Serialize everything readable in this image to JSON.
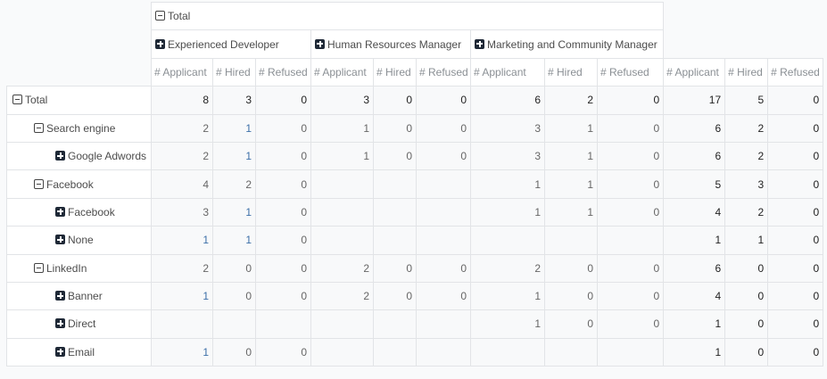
{
  "columns": {
    "root": {
      "label": "Total",
      "expanded": true
    },
    "groups": [
      {
        "label": "Experienced Developer",
        "expanded": false
      },
      {
        "label": "Human Resources Manager",
        "expanded": false
      },
      {
        "label": "Marketing and Community Manager",
        "expanded": false
      }
    ],
    "measures": [
      "# Applicant",
      "# Hired",
      "# Refused"
    ]
  },
  "rows": [
    {
      "label": "Total",
      "level": 0,
      "icon": "minus",
      "values": [
        "8",
        "3",
        "0",
        "3",
        "0",
        "0",
        "6",
        "2",
        "0",
        "17",
        "5",
        "0"
      ]
    },
    {
      "label": "Search engine",
      "level": 1,
      "icon": "minus",
      "values": [
        "2",
        "1",
        "0",
        "1",
        "0",
        "0",
        "3",
        "1",
        "0",
        "6",
        "2",
        "0"
      ]
    },
    {
      "label": "Google Adwords",
      "level": 2,
      "icon": "plus",
      "values": [
        "2",
        "1",
        "0",
        "1",
        "0",
        "0",
        "3",
        "1",
        "0",
        "6",
        "2",
        "0"
      ]
    },
    {
      "label": "Facebook",
      "level": 1,
      "icon": "minus",
      "values": [
        "4",
        "2",
        "0",
        "",
        "",
        "",
        "1",
        "1",
        "0",
        "5",
        "3",
        "0"
      ]
    },
    {
      "label": "Facebook",
      "level": 2,
      "icon": "plus",
      "values": [
        "3",
        "1",
        "0",
        "",
        "",
        "",
        "1",
        "1",
        "0",
        "4",
        "2",
        "0"
      ]
    },
    {
      "label": "None",
      "level": 2,
      "icon": "plus",
      "values": [
        "1",
        "1",
        "0",
        "",
        "",
        "",
        "",
        "",
        "",
        "1",
        "1",
        "0"
      ]
    },
    {
      "label": "LinkedIn",
      "level": 1,
      "icon": "minus",
      "values": [
        "2",
        "0",
        "0",
        "2",
        "0",
        "0",
        "2",
        "0",
        "0",
        "6",
        "0",
        "0"
      ]
    },
    {
      "label": "Banner",
      "level": 2,
      "icon": "plus",
      "values": [
        "1",
        "0",
        "0",
        "2",
        "0",
        "0",
        "1",
        "0",
        "0",
        "4",
        "0",
        "0"
      ]
    },
    {
      "label": "Direct",
      "level": 2,
      "icon": "plus",
      "values": [
        "",
        "",
        "",
        "",
        "",
        "",
        "1",
        "0",
        "0",
        "1",
        "0",
        "0"
      ]
    },
    {
      "label": "Email",
      "level": 2,
      "icon": "plus",
      "values": [
        "1",
        "0",
        "0",
        "",
        "",
        "",
        "",
        "",
        "",
        "1",
        "0",
        "0"
      ]
    }
  ],
  "colors": {
    "link_value": "#3c6fa8",
    "border": "#e2e4e7",
    "cell_bg": "#f8f9fa"
  }
}
